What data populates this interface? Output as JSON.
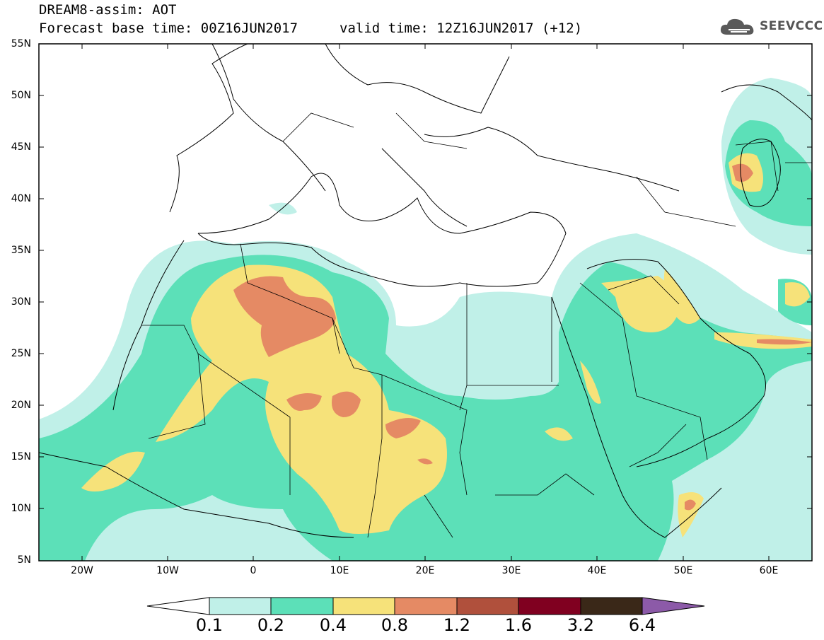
{
  "header": {
    "title": "DREAM8-assim: AOT",
    "base_time": "Forecast base time: 00Z16JUN2017",
    "valid_time": "valid time: 12Z16JUN2017 (+12)",
    "logo_text": "SEEVCCC"
  },
  "map": {
    "lat_labels": [
      "55N",
      "50N",
      "45N",
      "40N",
      "35N",
      "30N",
      "25N",
      "20N",
      "15N",
      "10N",
      "5N"
    ],
    "lon_labels": [
      "20W",
      "10W",
      "0",
      "10E",
      "20E",
      "30E",
      "40E",
      "50E",
      "60E"
    ],
    "lat_range": [
      5,
      55
    ],
    "lon_range": [
      -25,
      65
    ]
  },
  "colorbar": {
    "labels": [
      "0.1",
      "0.2",
      "0.4",
      "0.8",
      "1.2",
      "1.6",
      "3.2",
      "6.4"
    ],
    "colors": [
      "#ffffff",
      "#c0f0e8",
      "#5ce0b8",
      "#f6e27a",
      "#e58a64",
      "#b0503c",
      "#800020",
      "#3a2818",
      "#8c5aa8"
    ]
  },
  "colors": {
    "level1": "#c0f0e8",
    "level2": "#5ce0b8",
    "level3": "#f6e27a",
    "level4": "#e58a64",
    "level5": "#b0503c"
  }
}
